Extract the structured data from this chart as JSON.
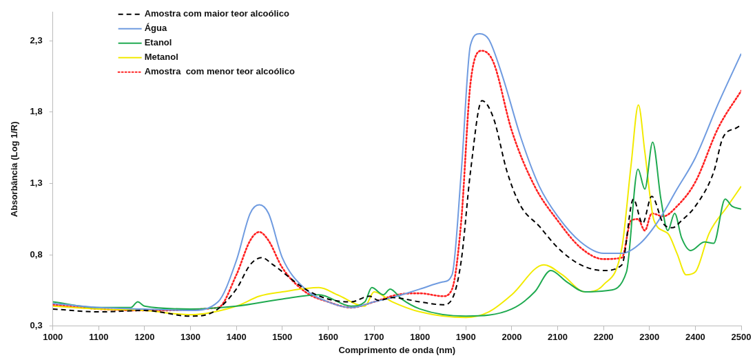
{
  "chart_data": {
    "type": "line",
    "xlabel": "Comprimento de onda (nm)",
    "ylabel": "Absorbância (Log 1/R)",
    "xlim": [
      1000,
      2500
    ],
    "xticks": [
      1000,
      1100,
      1200,
      1300,
      1400,
      1500,
      1600,
      1700,
      1800,
      1900,
      2000,
      2100,
      2200,
      2300,
      2400,
      2500
    ],
    "ylim": [
      0.3,
      2.5
    ],
    "yticks": [
      {
        "value": 0.3,
        "label": "0,3"
      },
      {
        "value": 0.8,
        "label": "0,8"
      },
      {
        "value": 1.3,
        "label": "1,3"
      },
      {
        "value": 1.8,
        "label": "1,8"
      },
      {
        "value": 2.3,
        "label": "2,3"
      }
    ],
    "grid": false,
    "legend": "top left",
    "marker": "none",
    "series": [
      {
        "name": "Amostra com maior teor alcoólico",
        "color": "#000000",
        "line_style": "dashed",
        "x": [
          1000,
          1100,
          1200,
          1300,
          1350,
          1400,
          1430,
          1455,
          1480,
          1550,
          1600,
          1650,
          1690,
          1710,
          1740,
          1800,
          1850,
          1870,
          1890,
          1910,
          1935,
          1960,
          1990,
          2020,
          2060,
          2100,
          2150,
          2200,
          2240,
          2265,
          2285,
          2305,
          2330,
          2350,
          2370,
          2400,
          2440,
          2460,
          2490,
          2500
        ],
        "values": [
          0.42,
          0.4,
          0.41,
          0.37,
          0.4,
          0.56,
          0.73,
          0.78,
          0.73,
          0.56,
          0.49,
          0.47,
          0.51,
          0.48,
          0.5,
          0.47,
          0.45,
          0.49,
          0.76,
          1.38,
          1.88,
          1.76,
          1.38,
          1.14,
          1.0,
          0.85,
          0.73,
          0.69,
          0.73,
          1.19,
          1.02,
          1.21,
          1.02,
          0.99,
          1.04,
          1.14,
          1.38,
          1.62,
          1.69,
          1.71
        ]
      },
      {
        "name": "Água",
        "color": "#6f9be0",
        "line_style": "solid",
        "x": [
          1000,
          1100,
          1200,
          1300,
          1360,
          1400,
          1430,
          1450,
          1470,
          1500,
          1550,
          1600,
          1650,
          1700,
          1750,
          1800,
          1850,
          1870,
          1890,
          1910,
          1930,
          1950,
          1980,
          2020,
          2060,
          2100,
          2150,
          2200,
          2240,
          2280,
          2320,
          2360,
          2400,
          2450,
          2500
        ],
        "values": [
          0.46,
          0.43,
          0.42,
          0.41,
          0.47,
          0.76,
          1.09,
          1.15,
          1.09,
          0.78,
          0.56,
          0.47,
          0.43,
          0.47,
          0.51,
          0.56,
          0.61,
          0.66,
          1.38,
          2.27,
          2.35,
          2.31,
          2.05,
          1.62,
          1.28,
          1.07,
          0.89,
          0.81,
          0.81,
          0.88,
          1.04,
          1.26,
          1.48,
          1.86,
          2.21
        ]
      },
      {
        "name": "Etanol",
        "color": "#1faa50",
        "line_style": "solid",
        "x": [
          1000,
          1100,
          1170,
          1185,
          1200,
          1300,
          1400,
          1500,
          1580,
          1650,
          1680,
          1695,
          1720,
          1735,
          1760,
          1800,
          1900,
          2000,
          2050,
          2085,
          2120,
          2160,
          2210,
          2250,
          2275,
          2290,
          2307,
          2325,
          2340,
          2355,
          2370,
          2390,
          2420,
          2440,
          2465,
          2480,
          2500
        ],
        "values": [
          0.47,
          0.43,
          0.43,
          0.47,
          0.44,
          0.42,
          0.44,
          0.49,
          0.52,
          0.44,
          0.47,
          0.57,
          0.52,
          0.56,
          0.49,
          0.42,
          0.37,
          0.42,
          0.54,
          0.69,
          0.61,
          0.54,
          0.55,
          0.68,
          1.4,
          1.26,
          1.59,
          1.19,
          0.97,
          1.09,
          0.92,
          0.83,
          0.89,
          0.88,
          1.19,
          1.14,
          1.12
        ]
      },
      {
        "name": "Metanol",
        "color": "#f2ea00",
        "line_style": "solid",
        "x": [
          1000,
          1100,
          1200,
          1300,
          1400,
          1450,
          1500,
          1580,
          1620,
          1680,
          1700,
          1740,
          1800,
          1900,
          1950,
          2000,
          2070,
          2110,
          2160,
          2200,
          2240,
          2260,
          2276,
          2290,
          2310,
          2340,
          2360,
          2380,
          2400,
          2430,
          2470,
          2500
        ],
        "values": [
          0.44,
          0.42,
          0.41,
          0.38,
          0.44,
          0.51,
          0.54,
          0.57,
          0.52,
          0.44,
          0.54,
          0.47,
          0.4,
          0.36,
          0.4,
          0.52,
          0.73,
          0.66,
          0.54,
          0.59,
          0.85,
          1.43,
          1.85,
          1.52,
          1.04,
          0.95,
          0.81,
          0.66,
          0.68,
          0.95,
          1.14,
          1.28
        ]
      },
      {
        "name": "Amostra  com menor teor alcoólico",
        "color": "#ff2020",
        "line_style": "dotted",
        "x": [
          1000,
          1100,
          1200,
          1360,
          1400,
          1430,
          1450,
          1470,
          1500,
          1550,
          1600,
          1650,
          1700,
          1750,
          1800,
          1850,
          1870,
          1890,
          1910,
          1935,
          1960,
          2000,
          2050,
          2100,
          2150,
          2200,
          2240,
          2260,
          2275,
          2290,
          2305,
          2330,
          2360,
          2400,
          2450,
          2500
        ],
        "values": [
          0.45,
          0.42,
          0.41,
          0.43,
          0.66,
          0.9,
          0.96,
          0.9,
          0.71,
          0.54,
          0.47,
          0.43,
          0.47,
          0.52,
          0.53,
          0.51,
          0.56,
          1.04,
          2.0,
          2.23,
          2.15,
          1.67,
          1.28,
          1.04,
          0.85,
          0.77,
          0.78,
          1.04,
          1.05,
          0.97,
          1.09,
          1.07,
          1.14,
          1.31,
          1.69,
          1.95
        ]
      }
    ]
  }
}
